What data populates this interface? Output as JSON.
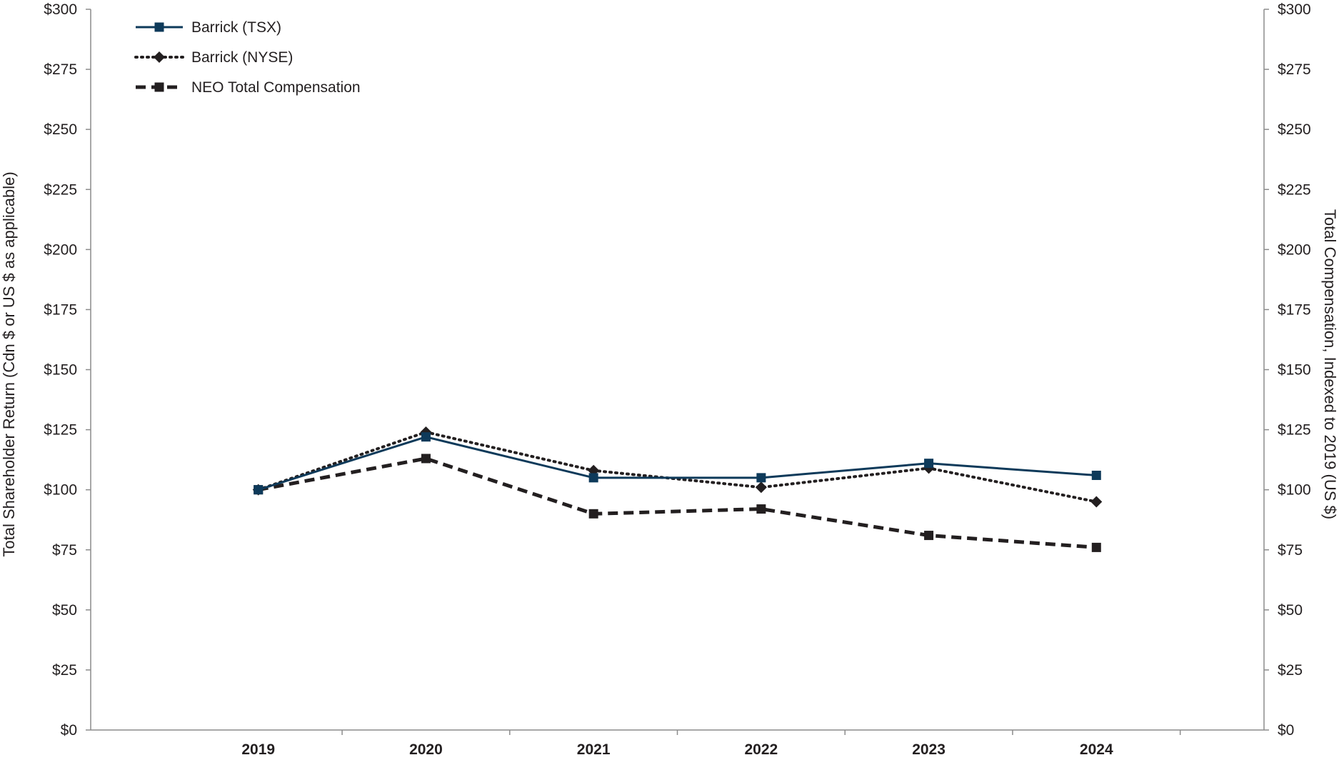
{
  "chart_data": {
    "type": "line",
    "categories": [
      "2019",
      "2020",
      "2021",
      "2022",
      "2023",
      "2024"
    ],
    "series": [
      {
        "name": "Barrick (TSX)",
        "values": [
          100,
          122,
          105,
          105,
          111,
          106
        ],
        "color": "#0e3a5a",
        "style": "solid",
        "marker": "square"
      },
      {
        "name": "Barrick (NYSE)",
        "values": [
          100,
          124,
          108,
          101,
          109,
          95
        ],
        "color": "#231f20",
        "style": "dotted",
        "marker": "diamond"
      },
      {
        "name": "NEO Total Compensation",
        "values": [
          100,
          113,
          90,
          92,
          81,
          76
        ],
        "color": "#231f20",
        "style": "dashed",
        "marker": "square"
      }
    ],
    "ylabel_left": "Total Shareholder Return (Cdn $ or US $ as applicable)",
    "ylabel_right": "Total Compensation, Indexed to 2019 (US $)",
    "yticks": [
      "$0",
      "$25",
      "$50",
      "$75",
      "$100",
      "$125",
      "$150",
      "$175",
      "$200",
      "$225",
      "$250",
      "$275",
      "$300"
    ],
    "ylim": [
      0,
      300
    ],
    "legend_position": "top-left",
    "grid": false
  }
}
